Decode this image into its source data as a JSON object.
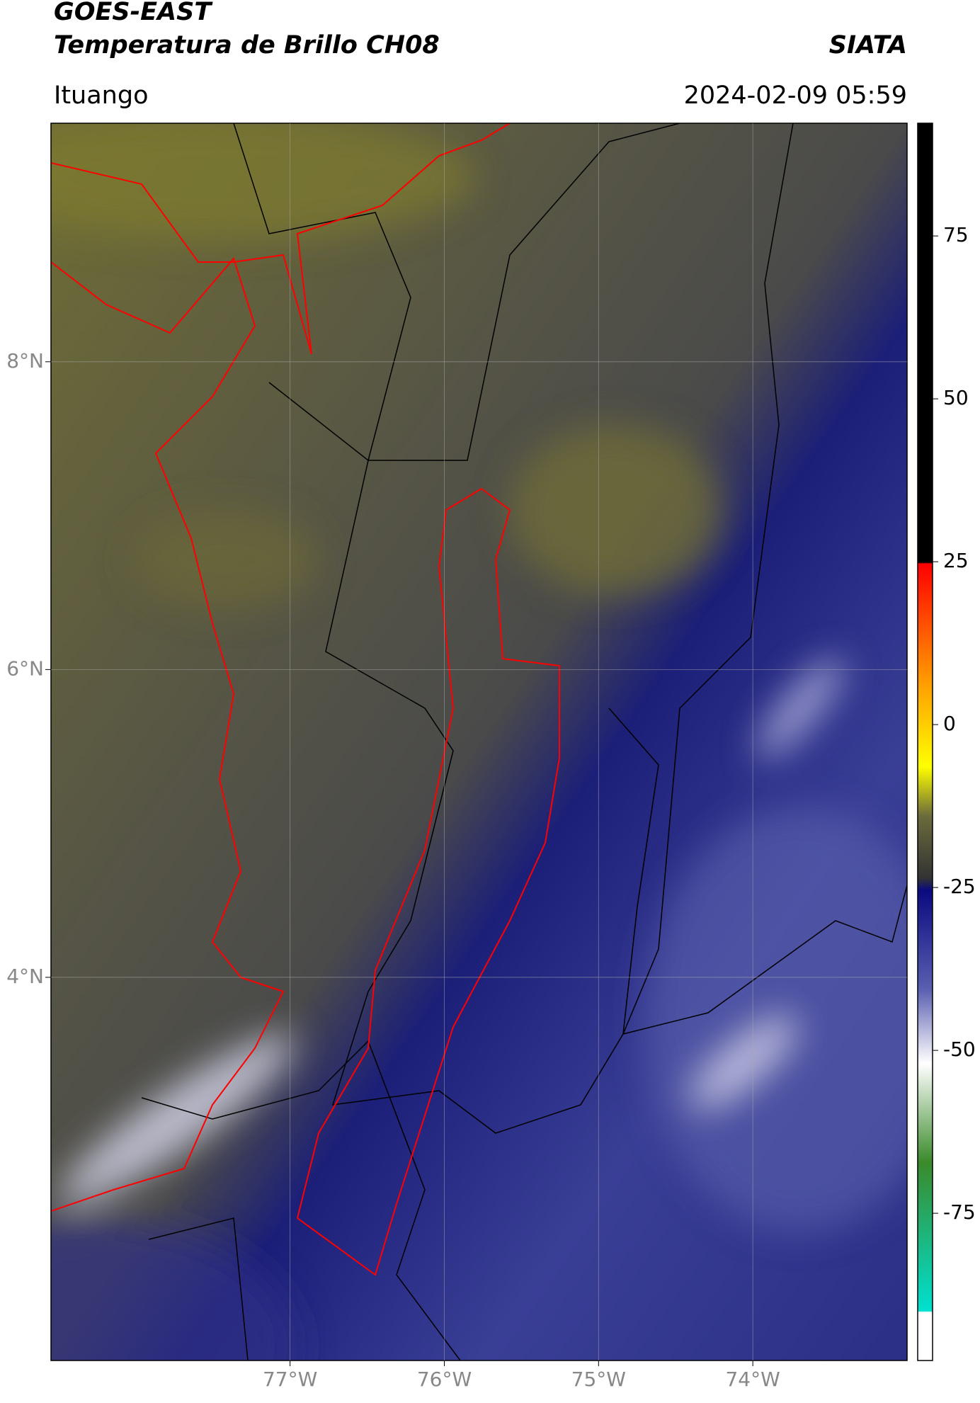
{
  "header": {
    "title": "GOES-EAST",
    "subtitle": "Temperatura de Brillo CH08",
    "brand": "SIATA",
    "location": "Ituango",
    "datetime": "2024-02-09 05:59"
  },
  "map": {
    "xlim": [
      -78.55,
      -73.0
    ],
    "ylim": [
      1.51,
      9.55
    ],
    "xticks": [
      {
        "value": -77,
        "label": "77°W"
      },
      {
        "value": -76,
        "label": "76°W"
      },
      {
        "value": -75,
        "label": "75°W"
      },
      {
        "value": -74,
        "label": "74°W"
      }
    ],
    "yticks": [
      {
        "value": 8,
        "label": "8°N"
      },
      {
        "value": 6,
        "label": "6°N"
      },
      {
        "value": 4,
        "label": "4°N"
      }
    ],
    "grid": true
  },
  "colorbar": {
    "lim": [
      -97.6,
      92.3
    ],
    "ticks": [
      75,
      50,
      25,
      0,
      -25,
      -50,
      -75
    ]
  }
}
